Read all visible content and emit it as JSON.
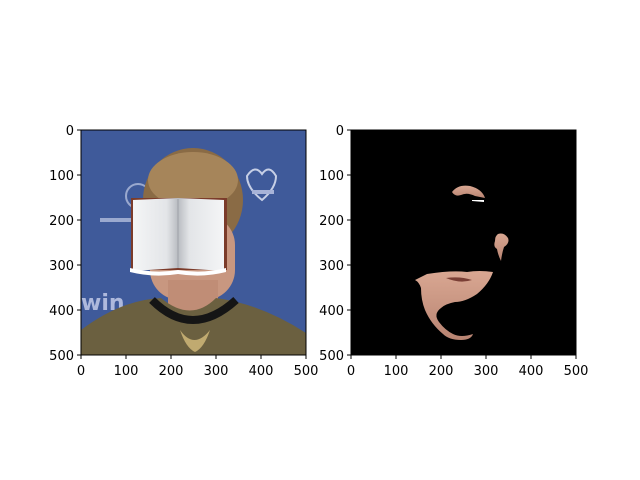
{
  "figure": {
    "panels": [
      {
        "name": "left",
        "image": "photo of a man with an open book pasted over his face",
        "x_ticks": [
          "0",
          "100",
          "200",
          "300",
          "400",
          "500"
        ],
        "y_ticks": [
          "0",
          "100",
          "200",
          "300",
          "400",
          "500"
        ]
      },
      {
        "name": "right",
        "image": "black mask showing only skin regions (forehead, ear, mouth/chin, neck)",
        "x_ticks": [
          "0",
          "100",
          "200",
          "300",
          "400",
          "500"
        ],
        "y_ticks": [
          "0",
          "100",
          "200",
          "300",
          "400",
          "500"
        ]
      }
    ]
  }
}
